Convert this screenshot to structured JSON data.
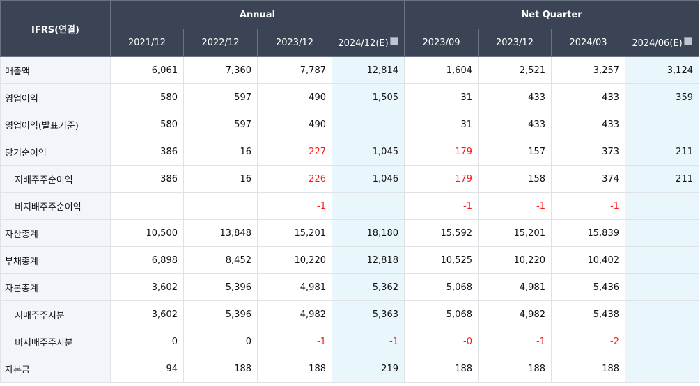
{
  "header": {
    "corner": "IFRS(연결)",
    "groups": {
      "annual": "Annual",
      "quarter": "Net Quarter"
    },
    "periods": [
      "2021/12",
      "2022/12",
      "2023/12",
      "2024/12(E)",
      "2023/09",
      "2023/12",
      "2024/03",
      "2024/06(E)"
    ],
    "estimate_icon": "info-icon"
  },
  "rows": [
    {
      "label": "매출액",
      "sub": false,
      "values": [
        "6,061",
        "7,360",
        "7,787",
        "12,814",
        "1,604",
        "2,521",
        "3,257",
        "3,124"
      ]
    },
    {
      "label": "영업이익",
      "sub": false,
      "values": [
        "580",
        "597",
        "490",
        "1,505",
        "31",
        "433",
        "433",
        "359"
      ]
    },
    {
      "label": "영업이익(발표기준)",
      "sub": false,
      "values": [
        "580",
        "597",
        "490",
        "",
        "31",
        "433",
        "433",
        ""
      ]
    },
    {
      "label": "당기순이익",
      "sub": false,
      "values": [
        "386",
        "16",
        "-227",
        "1,045",
        "-179",
        "157",
        "373",
        "211"
      ]
    },
    {
      "label": "지배주주순이익",
      "sub": true,
      "values": [
        "386",
        "16",
        "-226",
        "1,046",
        "-179",
        "158",
        "374",
        "211"
      ]
    },
    {
      "label": "비지배주주순이익",
      "sub": true,
      "values": [
        "",
        "",
        "-1",
        "",
        "-1",
        "-1",
        "-1",
        ""
      ]
    },
    {
      "label": "자산총계",
      "sub": false,
      "values": [
        "10,500",
        "13,848",
        "15,201",
        "18,180",
        "15,592",
        "15,201",
        "15,839",
        ""
      ]
    },
    {
      "label": "부채총계",
      "sub": false,
      "values": [
        "6,898",
        "8,452",
        "10,220",
        "12,818",
        "10,525",
        "10,220",
        "10,402",
        ""
      ]
    },
    {
      "label": "자본총계",
      "sub": false,
      "values": [
        "3,602",
        "5,396",
        "4,981",
        "5,362",
        "5,068",
        "4,981",
        "5,436",
        ""
      ]
    },
    {
      "label": "지배주주지분",
      "sub": true,
      "values": [
        "3,602",
        "5,396",
        "4,982",
        "5,363",
        "5,068",
        "4,982",
        "5,438",
        ""
      ]
    },
    {
      "label": "비지배주주지분",
      "sub": true,
      "values": [
        "0",
        "0",
        "-1",
        "-1",
        "-0",
        "-1",
        "-2",
        ""
      ]
    },
    {
      "label": "자본금",
      "sub": false,
      "values": [
        "94",
        "188",
        "188",
        "219",
        "188",
        "188",
        "188",
        ""
      ]
    }
  ],
  "colors": {
    "header_bg": "#3b4454",
    "label_bg": "#f2f5fa",
    "estimate_bg": "#e9f6fb",
    "negative": "#ff1a1a"
  }
}
